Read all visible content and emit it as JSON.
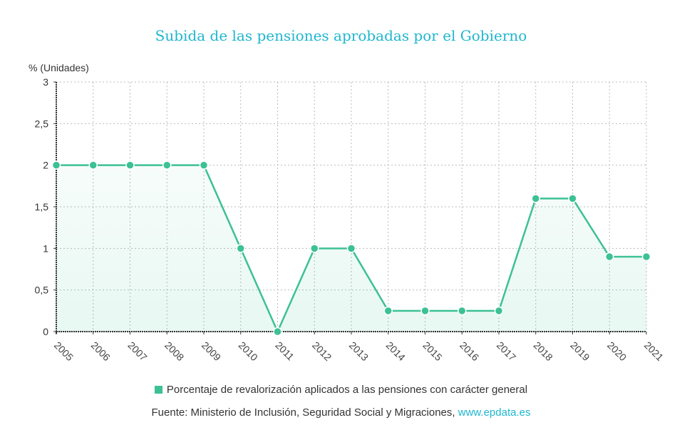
{
  "title": "Subida de las pensiones aprobadas por el Gobierno",
  "y_axis_label": "% (Unidades)",
  "legend": {
    "label": "Porcentaje de revalorización aplicados a las pensiones con carácter general",
    "color": "#3cc194"
  },
  "source": {
    "prefix": "Fuente: Ministerio de Inclusión, Seguridad Social y Migraciones, ",
    "link": "www.epdata.es"
  },
  "colors": {
    "title": "#1fb6cf",
    "line": "#3cc194",
    "area": "#e6f6f0",
    "grid": "#bbbbbb",
    "axis": "#333333"
  },
  "chart_data": {
    "type": "line",
    "title": "Subida de las pensiones aprobadas por el Gobierno",
    "xlabel": "",
    "ylabel": "% (Unidades)",
    "ylim": [
      0,
      3
    ],
    "y_ticks": [
      "0",
      "0,5",
      "1",
      "1,5",
      "2",
      "2,5",
      "3"
    ],
    "categories": [
      "2005",
      "2006",
      "2007",
      "2008",
      "2009",
      "2010",
      "2011",
      "2012",
      "2013",
      "2014",
      "2015",
      "2016",
      "2017",
      "2018",
      "2019",
      "2020",
      "2021"
    ],
    "series": [
      {
        "name": "Porcentaje de revalorización aplicados a las pensiones con carácter general",
        "values": [
          2,
          2,
          2,
          2,
          2,
          1,
          0,
          1,
          1,
          0.25,
          0.25,
          0.25,
          0.25,
          1.6,
          1.6,
          0.9,
          0.9
        ]
      }
    ],
    "grid": true,
    "legend_position": "bottom",
    "area_fill": true
  }
}
